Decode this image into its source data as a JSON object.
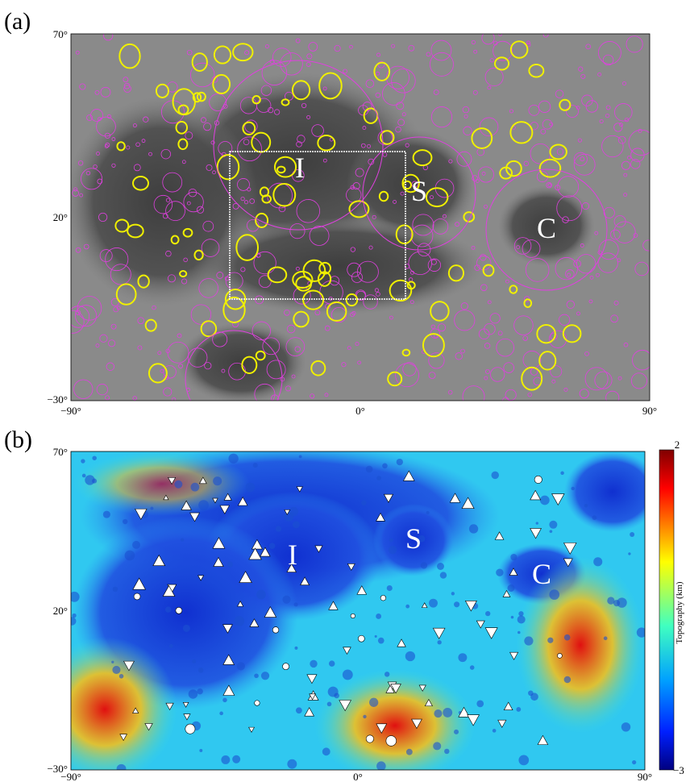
{
  "panels": [
    {
      "label": "(a)",
      "y_ticks": [
        "70°",
        "20°",
        "−30°"
      ],
      "x_ticks": [
        "−90°",
        "0°",
        "90°"
      ],
      "regions": [
        "I",
        "S",
        "C"
      ]
    },
    {
      "label": "(b)",
      "y_ticks": [
        "70°",
        "20°",
        "−30°"
      ],
      "x_ticks": [
        "−90°",
        "0°",
        "90°"
      ],
      "regions": [
        "I",
        "S",
        "C"
      ],
      "colorbar": {
        "title": "Topography (km)",
        "ticks": [
          "2",
          "−3"
        ]
      }
    }
  ]
}
